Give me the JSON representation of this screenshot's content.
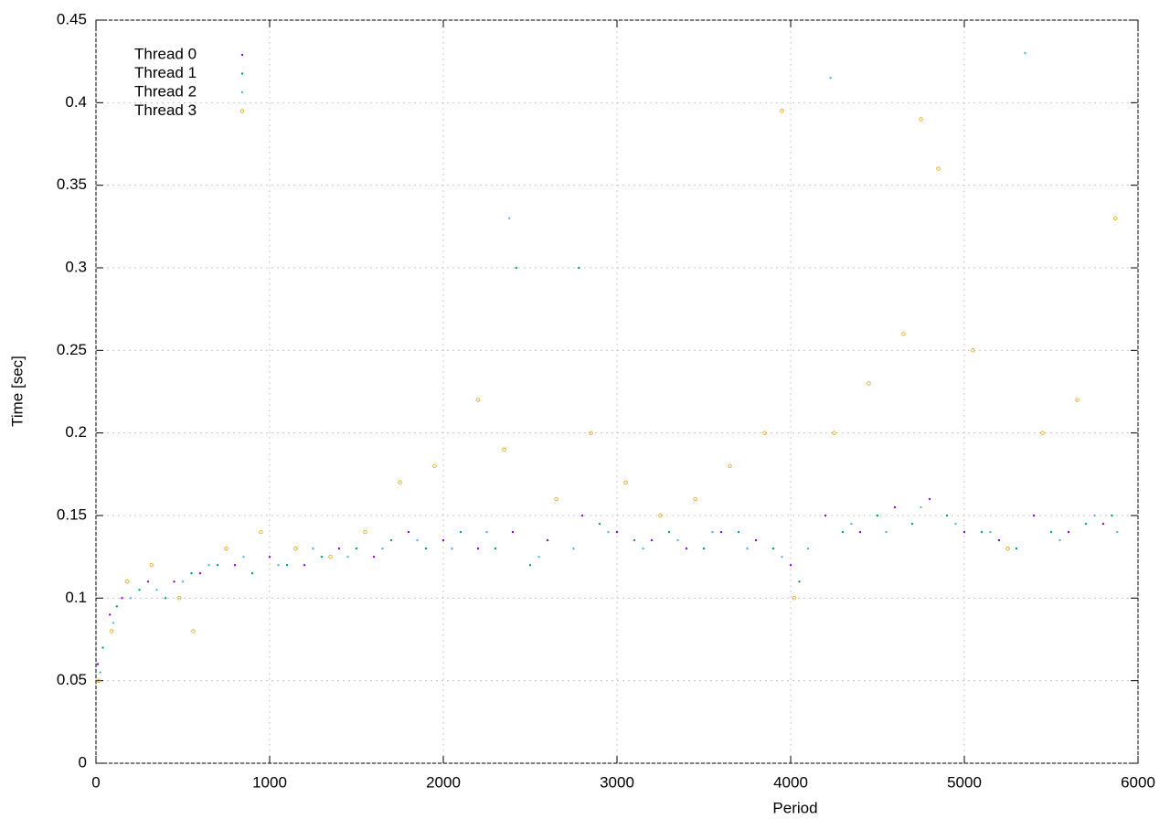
{
  "chart_data": {
    "type": "scatter",
    "x_label": "Period",
    "y_label": "Time [sec]",
    "xlim": [
      0,
      6000
    ],
    "ylim": [
      0,
      0.45
    ],
    "xticks": [
      0,
      1000,
      2000,
      3000,
      4000,
      5000,
      6000
    ],
    "yticks": [
      0,
      0.05,
      0.1,
      0.15,
      0.2,
      0.25,
      0.3,
      0.35,
      0.4,
      0.45
    ],
    "grid": true,
    "legend": "top-left",
    "series": [
      {
        "name": "Thread 0",
        "color": "#9400d3",
        "x": [
          10,
          80,
          150,
          300,
          450,
          600,
          800,
          1000,
          1200,
          1400,
          1600,
          1800,
          2000,
          2200,
          2400,
          2600,
          2800,
          3000,
          3200,
          3400,
          3600,
          3800,
          4000,
          4200,
          4400,
          4600,
          4800,
          5000,
          5200,
          5400,
          5600,
          5800
        ],
        "y": [
          0.06,
          0.09,
          0.1,
          0.11,
          0.11,
          0.115,
          0.12,
          0.125,
          0.12,
          0.13,
          0.125,
          0.14,
          0.135,
          0.13,
          0.14,
          0.135,
          0.15,
          0.14,
          0.135,
          0.13,
          0.14,
          0.135,
          0.12,
          0.15,
          0.14,
          0.155,
          0.16,
          0.14,
          0.135,
          0.15,
          0.14,
          0.145
        ]
      },
      {
        "name": "Thread 1",
        "color": "#009e73",
        "x": [
          40,
          120,
          250,
          400,
          550,
          700,
          900,
          1100,
          1300,
          1500,
          1700,
          1900,
          2100,
          2300,
          2420,
          2500,
          2780,
          2900,
          3100,
          3300,
          3500,
          3700,
          3900,
          4050,
          4300,
          4500,
          4700,
          4900,
          5100,
          5300,
          5500,
          5700,
          5850
        ],
        "y": [
          0.07,
          0.095,
          0.105,
          0.1,
          0.115,
          0.12,
          0.115,
          0.12,
          0.125,
          0.13,
          0.135,
          0.13,
          0.14,
          0.13,
          0.3,
          0.12,
          0.3,
          0.145,
          0.135,
          0.14,
          0.13,
          0.14,
          0.13,
          0.11,
          0.14,
          0.15,
          0.145,
          0.15,
          0.14,
          0.13,
          0.14,
          0.145,
          0.15
        ]
      },
      {
        "name": "Thread 2",
        "color": "#56b4e9",
        "x": [
          25,
          100,
          200,
          350,
          500,
          650,
          850,
          1050,
          1250,
          1450,
          1650,
          1850,
          2050,
          2250,
          2380,
          2550,
          2750,
          2950,
          3150,
          3350,
          3550,
          3750,
          3950,
          4100,
          4230,
          4350,
          4550,
          4750,
          4950,
          5150,
          5350,
          5550,
          5750,
          5880
        ],
        "y": [
          0.055,
          0.085,
          0.1,
          0.105,
          0.11,
          0.12,
          0.125,
          0.12,
          0.13,
          0.125,
          0.13,
          0.135,
          0.13,
          0.14,
          0.33,
          0.125,
          0.13,
          0.14,
          0.13,
          0.135,
          0.14,
          0.13,
          0.125,
          0.13,
          0.415,
          0.145,
          0.14,
          0.155,
          0.145,
          0.14,
          0.43,
          0.135,
          0.15,
          0.14
        ]
      },
      {
        "name": "Thread 3",
        "color": "#e69f00",
        "x": [
          15,
          90,
          180,
          320,
          480,
          560,
          750,
          950,
          1150,
          1350,
          1550,
          1750,
          1950,
          2200,
          2350,
          2650,
          2850,
          3050,
          3250,
          3450,
          3650,
          3850,
          3950,
          4020,
          4250,
          4450,
          4650,
          4750,
          4850,
          5050,
          5250,
          5450,
          5650,
          5870
        ],
        "y": [
          0.05,
          0.08,
          0.11,
          0.12,
          0.1,
          0.08,
          0.13,
          0.14,
          0.13,
          0.125,
          0.14,
          0.17,
          0.18,
          0.22,
          0.19,
          0.16,
          0.2,
          0.17,
          0.15,
          0.16,
          0.18,
          0.2,
          0.395,
          0.1,
          0.2,
          0.23,
          0.26,
          0.39,
          0.36,
          0.25,
          0.13,
          0.2,
          0.22,
          0.33
        ]
      }
    ]
  }
}
